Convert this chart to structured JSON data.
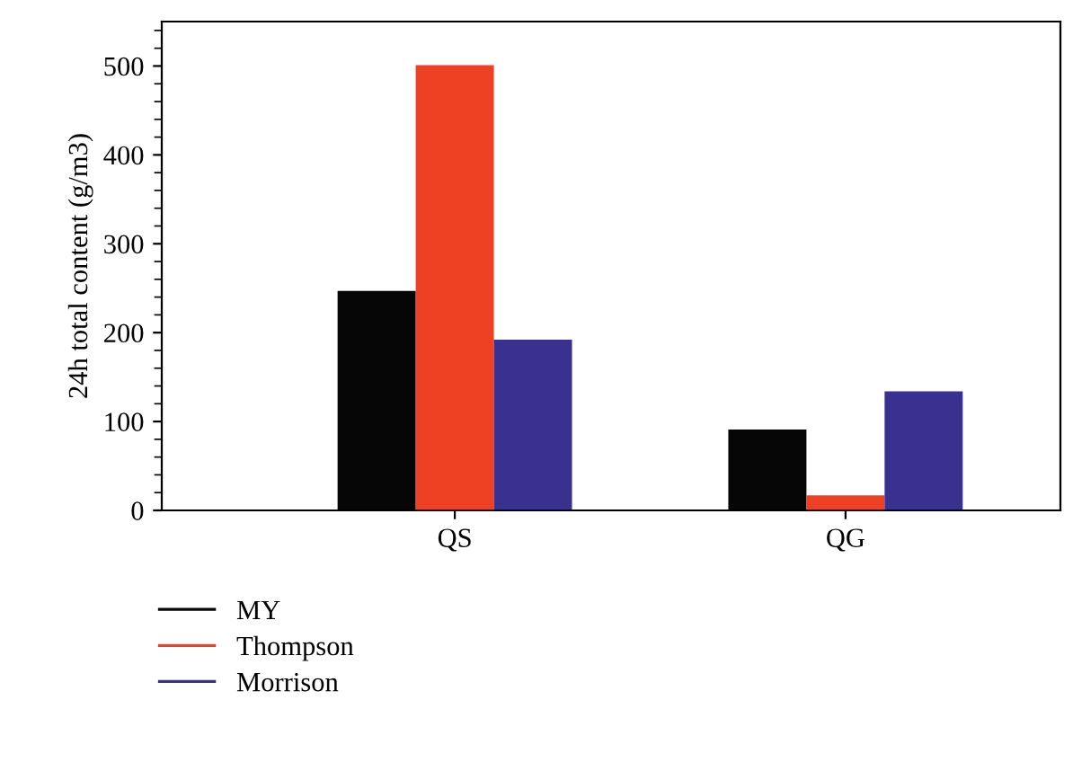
{
  "chart_data": {
    "type": "bar",
    "ylabel": "24h total content (g/m3)",
    "categories": [
      "QS",
      "QG"
    ],
    "series": [
      {
        "name": "MY",
        "color": "#050605",
        "values": [
          247,
          91
        ]
      },
      {
        "name": "Thompson",
        "color": "#ee4124",
        "values": [
          501,
          17
        ]
      },
      {
        "name": "Morrison",
        "color": "#3a3090",
        "values": [
          192,
          134
        ]
      }
    ],
    "ylim": [
      0,
      550
    ],
    "yticks": [
      0,
      100,
      200,
      300,
      400,
      500
    ],
    "grid": false,
    "legend": "bottom"
  }
}
